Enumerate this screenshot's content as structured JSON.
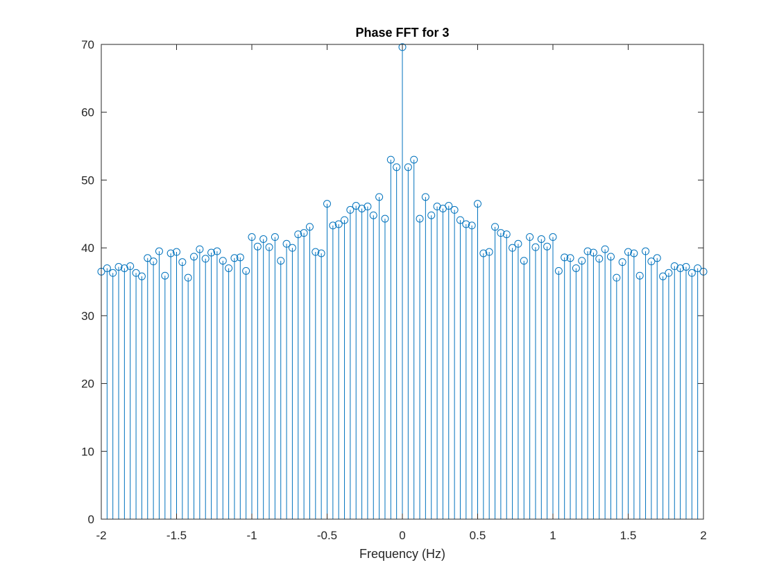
{
  "chart_data": {
    "type": "stem",
    "title": "Phase FFT for 3",
    "xlabel": "Frequency (Hz)",
    "ylabel": "",
    "xlim": [
      -2,
      2
    ],
    "ylim": [
      0,
      70
    ],
    "grid": false,
    "legend": "none",
    "color": "#0072BD",
    "x_ticks": [
      -2,
      -1.5,
      -1,
      -0.5,
      0,
      0.5,
      1,
      1.5,
      2
    ],
    "x_tick_labels": [
      "-2",
      "-1.5",
      "-1",
      "-0.5",
      "0",
      "0.5",
      "1",
      "1.5",
      "2"
    ],
    "y_ticks": [
      0,
      10,
      20,
      30,
      40,
      50,
      60,
      70
    ],
    "y_tick_labels": [
      "0",
      "10",
      "20",
      "30",
      "40",
      "50",
      "60",
      "70"
    ],
    "x": [
      -2.0,
      -1.9615,
      -1.9231,
      -1.8846,
      -1.8462,
      -1.8077,
      -1.7692,
      -1.7308,
      -1.6923,
      -1.6538,
      -1.6154,
      -1.5769,
      -1.5385,
      -1.5,
      -1.4615,
      -1.4231,
      -1.3846,
      -1.3462,
      -1.3077,
      -1.2692,
      -1.2308,
      -1.1923,
      -1.1538,
      -1.1154,
      -1.0769,
      -1.0385,
      -1.0,
      -0.9615,
      -0.9231,
      -0.8846,
      -0.8462,
      -0.8077,
      -0.7692,
      -0.7308,
      -0.6923,
      -0.6538,
      -0.6154,
      -0.5769,
      -0.5385,
      -0.5,
      -0.4615,
      -0.4231,
      -0.3846,
      -0.3462,
      -0.3077,
      -0.2692,
      -0.2308,
      -0.1923,
      -0.1538,
      -0.1154,
      -0.0769,
      -0.0385,
      0.0,
      0.0385,
      0.0769,
      0.1154,
      0.1538,
      0.1923,
      0.2308,
      0.2692,
      0.3077,
      0.3462,
      0.3846,
      0.4231,
      0.4615,
      0.5,
      0.5385,
      0.5769,
      0.6154,
      0.6538,
      0.6923,
      0.7308,
      0.7692,
      0.8077,
      0.8462,
      0.8846,
      0.9231,
      0.9615,
      1.0,
      1.0385,
      1.0769,
      1.1154,
      1.1538,
      1.1923,
      1.2308,
      1.2692,
      1.3077,
      1.3462,
      1.3846,
      1.4231,
      1.4615,
      1.5,
      1.5385,
      1.5769,
      1.6154,
      1.6538,
      1.6923,
      1.7308,
      1.7692,
      1.8077,
      1.8462,
      1.8846,
      1.9231,
      1.9615,
      2.0
    ],
    "y": [
      36.5,
      37.0,
      36.3,
      37.2,
      37.0,
      37.3,
      36.3,
      35.8,
      38.5,
      38.0,
      39.5,
      35.9,
      39.2,
      39.4,
      37.9,
      35.6,
      38.7,
      39.8,
      38.4,
      39.3,
      39.5,
      38.1,
      37.0,
      38.5,
      38.6,
      36.6,
      41.6,
      40.2,
      41.3,
      40.1,
      41.6,
      38.1,
      40.6,
      40.0,
      42.0,
      42.2,
      43.1,
      39.4,
      39.2,
      46.5,
      43.3,
      43.5,
      44.1,
      45.6,
      46.2,
      45.8,
      46.1,
      44.8,
      47.5,
      44.3,
      53.0,
      51.9,
      69.6,
      51.9,
      53.0,
      44.3,
      47.5,
      44.8,
      46.1,
      45.8,
      46.2,
      45.6,
      44.1,
      43.5,
      43.3,
      46.5,
      39.2,
      39.4,
      43.1,
      42.2,
      42.0,
      40.0,
      40.6,
      38.1,
      41.6,
      40.1,
      41.3,
      40.2,
      41.6,
      36.6,
      38.6,
      38.5,
      37.0,
      38.1,
      39.5,
      39.3,
      38.4,
      39.8,
      38.7,
      35.6,
      37.9,
      39.4,
      39.2,
      35.9,
      39.5,
      38.0,
      38.5,
      35.8,
      36.3,
      37.3,
      37.0,
      37.2,
      36.3,
      37.0,
      36.5
    ]
  }
}
